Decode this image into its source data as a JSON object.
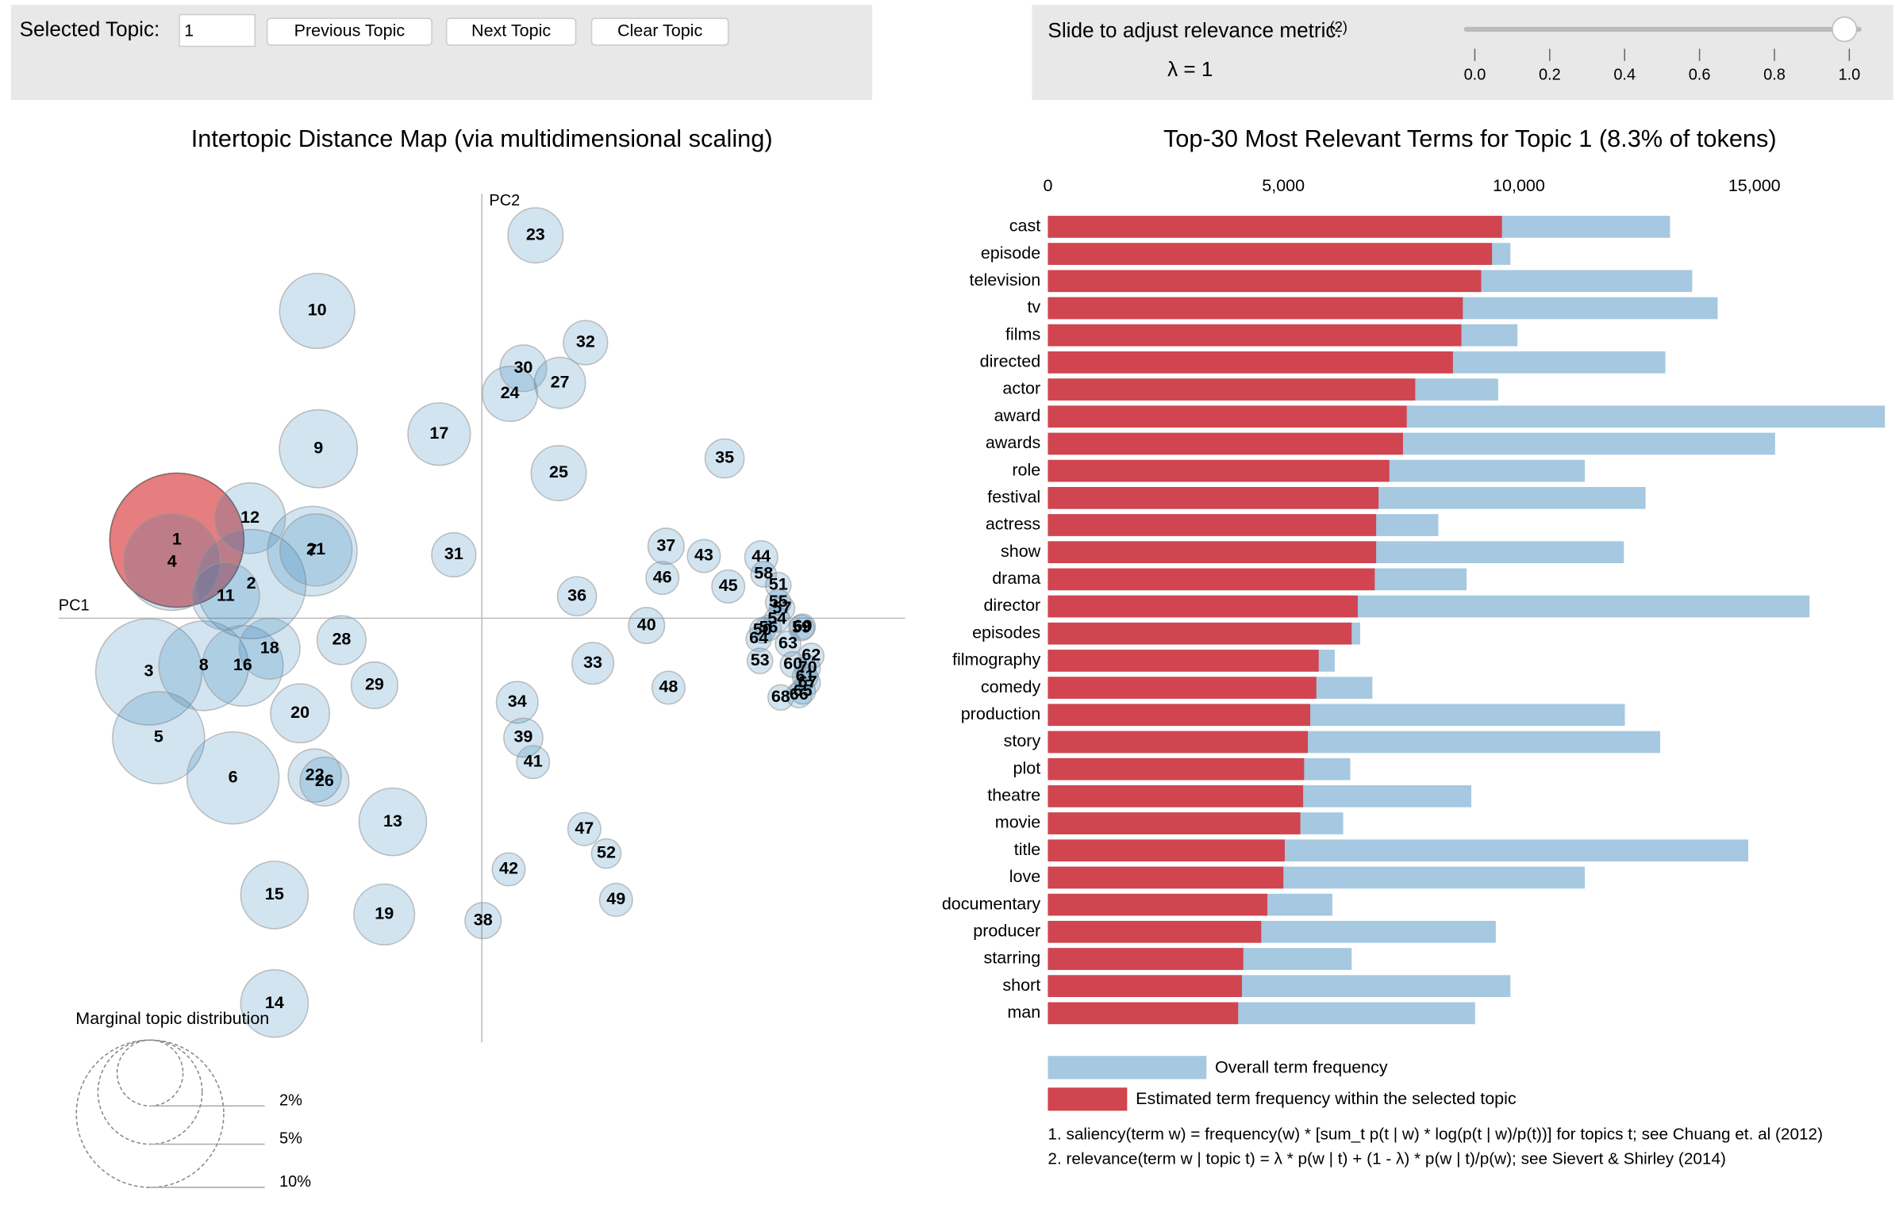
{
  "controls": {
    "selected_topic_label": "Selected Topic:",
    "selected_topic": "1",
    "buttons": [
      "Previous Topic",
      "Next Topic",
      "Clear Topic"
    ],
    "slider": {
      "label": "Slide to adjust relevance metric:",
      "note": "(2)",
      "lambda_label": "λ = 1",
      "value": 1,
      "xlim": [
        0,
        1
      ],
      "xticks": [
        {
          "value": 0,
          "label": "0.0"
        },
        0.2,
        0.4,
        0.6,
        0.8,
        {
          "value": 1,
          "label": "1.0"
        }
      ]
    }
  },
  "chart_data": [
    {
      "type": "scatter",
      "title": "Intertopic Distance Map (via multidimensional scaling)",
      "x_label": "PC1",
      "y_label": "PC2",
      "xlim": [
        -0.347,
        0.347
      ],
      "ylim": [
        -0.348,
        0.348
      ],
      "color": "#1f77b4",
      "selected_color": "#d62728",
      "labels": [
        "1",
        "2",
        "3",
        "4",
        "5",
        "6",
        "7",
        "8",
        "9",
        "10",
        "11",
        "12",
        "13",
        "14",
        "15",
        "16",
        "17",
        "18",
        "19",
        "20",
        "21",
        "22",
        "23",
        "24",
        "25",
        "26",
        "27",
        "28",
        "29",
        "30",
        "31",
        "32",
        "33",
        "34",
        "35",
        "36",
        "37",
        "38",
        "39",
        "40",
        "41",
        "42",
        "43",
        "44",
        "45",
        "46",
        "47",
        "48",
        "49",
        "50",
        "51",
        "52",
        "53",
        "54",
        "55",
        "56",
        "57",
        "58",
        "59",
        "60",
        "61",
        "62",
        "63",
        "64",
        "65",
        "66",
        "67",
        "68",
        "69",
        "70"
      ],
      "x": [
        -0.25,
        -0.189,
        -0.273,
        -0.254,
        -0.265,
        -0.204,
        -0.139,
        -0.228,
        -0.134,
        -0.135,
        -0.21,
        -0.19,
        -0.073,
        -0.17,
        -0.17,
        -0.196,
        -0.035,
        -0.174,
        -0.08,
        -0.149,
        -0.136,
        -0.137,
        0.044,
        0.023,
        0.063,
        -0.129,
        0.064,
        -0.115,
        -0.088,
        0.034,
        -0.023,
        0.085,
        0.091,
        0.029,
        0.199,
        0.078,
        0.151,
        0.001,
        0.034,
        0.135,
        0.042,
        0.022,
        0.182,
        0.229,
        0.202,
        0.148,
        0.084,
        0.153,
        0.11,
        0.23,
        0.243,
        0.102,
        0.228,
        0.242,
        0.243,
        0.235,
        0.246,
        0.231,
        0.262,
        0.255,
        0.265,
        0.27,
        0.251,
        0.227,
        0.263,
        0.26,
        0.267,
        0.245,
        0.263,
        0.267
      ],
      "y": [
        0.064,
        0.028,
        -0.044,
        0.046,
        -0.098,
        -0.131,
        0.055,
        -0.039,
        0.139,
        0.252,
        0.018,
        0.082,
        -0.167,
        -0.316,
        -0.227,
        -0.039,
        0.151,
        -0.025,
        -0.243,
        -0.078,
        0.056,
        -0.129,
        0.314,
        0.184,
        0.119,
        -0.134,
        0.193,
        -0.018,
        -0.055,
        0.205,
        0.052,
        0.226,
        -0.037,
        -0.069,
        0.131,
        0.018,
        0.059,
        -0.248,
        -0.098,
        -0.006,
        -0.118,
        -0.206,
        0.051,
        0.05,
        0.026,
        0.033,
        -0.173,
        -0.057,
        -0.231,
        -0.01,
        0.027,
        -0.193,
        -0.035,
        -0.001,
        0.013,
        -0.008,
        0.008,
        0.036,
        -0.008,
        -0.038,
        -0.048,
        -0.031,
        -0.021,
        -0.017,
        -0.06,
        -0.063,
        -0.053,
        -0.065,
        -0.007,
        -0.041
      ],
      "sizes": [
        8.3,
        5.5,
        5.2,
        4.3,
        3.9,
        3.9,
        3.7,
        3.7,
        2.8,
        2.6,
        2.1,
        2.3,
        2.1,
        2.1,
        2.1,
        3.0,
        1.8,
        1.7,
        1.7,
        1.6,
        2.4,
        1.3,
        1.4,
        1.4,
        1.4,
        1.1,
        1.2,
        1.1,
        1.0,
        1.0,
        0.9,
        0.9,
        0.8,
        0.8,
        0.7,
        0.7,
        0.6,
        0.6,
        0.7,
        0.6,
        0.5,
        0.5,
        0.5,
        0.5,
        0.5,
        0.5,
        0.5,
        0.5,
        0.5,
        0.3,
        0.3,
        0.4,
        0.3,
        0.3,
        0.3,
        0.3,
        0.3,
        0.3,
        0.3,
        0.3,
        0.3,
        0.3,
        0.3,
        0.3,
        0.3,
        0.3,
        0.3,
        0.3,
        0.3,
        0.3
      ],
      "size_legend": {
        "title": "Marginal topic distribution",
        "values": [
          {
            "value": 2,
            "label": "2%"
          },
          {
            "value": 5,
            "label": "5%"
          },
          {
            "value": 10,
            "label": "10%"
          }
        ]
      }
    },
    {
      "type": "bar",
      "orientation": "horizontal",
      "title": "Top-30 Most Relevant Terms for Topic 1 (8.3% of tokens)",
      "categories": [
        "cast",
        "episode",
        "television",
        "tv",
        "films",
        "directed",
        "actor",
        "award",
        "awards",
        "role",
        "festival",
        "actress",
        "show",
        "drama",
        "director",
        "episodes",
        "filmography",
        "comedy",
        "production",
        "story",
        "plot",
        "theatre",
        "movie",
        "title",
        "love",
        "documentary",
        "producer",
        "starring",
        "short",
        "man"
      ],
      "xlim": [
        0,
        18000
      ],
      "xticks": [
        0,
        {
          "value": 5000,
          "label": "5,000"
        },
        {
          "value": 10000,
          "label": "10,000"
        },
        {
          "value": 15000,
          "label": "15,000"
        }
      ],
      "series": [
        {
          "name": "Overall term frequency",
          "color": "#a6c8e1",
          "values": [
            13210,
            9820,
            13680,
            14220,
            9970,
            13110,
            9560,
            17770,
            15440,
            11400,
            12690,
            8290,
            12230,
            8890,
            16170,
            6630,
            6090,
            6890,
            12250,
            13000,
            6420,
            8990,
            6270,
            14870,
            11400,
            6040,
            9510,
            6450,
            9820,
            9070
          ]
        },
        {
          "name": "Estimated term frequency within the selected topic",
          "color": "#d0454f",
          "values": [
            9640,
            9430,
            9200,
            8810,
            8780,
            8600,
            7800,
            7620,
            7540,
            7250,
            7020,
            6970,
            6970,
            6940,
            6580,
            6450,
            5750,
            5700,
            5570,
            5520,
            5440,
            5420,
            5360,
            5030,
            5000,
            4660,
            4530,
            4150,
            4120,
            4040
          ]
        }
      ],
      "footnotes": [
        "1. saliency(term w) = frequency(w) * [sum_t p(t | w) * log(p(t | w)/p(t))] for topics t; see Chuang et. al (2012)",
        "2. relevance(term w | topic t) = λ * p(w | t) + (1 - λ) * p(w | t)/p(w); see Sievert & Shirley (2014)"
      ]
    }
  ]
}
